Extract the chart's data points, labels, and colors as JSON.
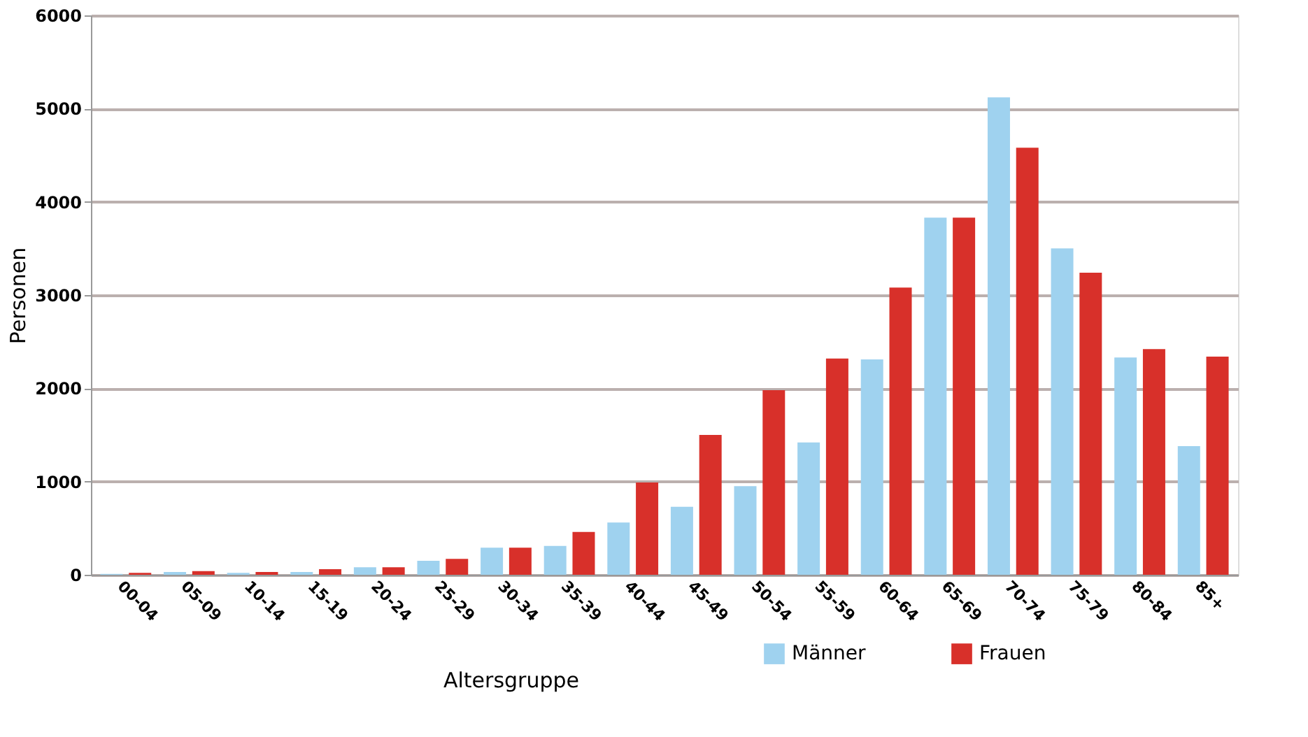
{
  "chart_data": {
    "type": "bar",
    "xlabel": "Altersgruppe",
    "ylabel": "Personen",
    "categories": [
      "00-04",
      "05-09",
      "10-14",
      "15-19",
      "20-24",
      "25-29",
      "30-34",
      "35-39",
      "40-44",
      "45-49",
      "50-54",
      "55-59",
      "60-64",
      "65-69",
      "70-74",
      "75-79",
      "80-84",
      "85+"
    ],
    "series": [
      {
        "name": "Männer",
        "color": "#9fd2ef",
        "values": [
          10,
          30,
          20,
          30,
          80,
          150,
          290,
          310,
          560,
          730,
          950,
          1420,
          2310,
          3830,
          5120,
          3500,
          2330,
          1380
        ]
      },
      {
        "name": "Frauen",
        "color": "#d8302a",
        "values": [
          20,
          40,
          30,
          60,
          80,
          170,
          290,
          460,
          990,
          1500,
          1980,
          2320,
          3080,
          3830,
          4580,
          3240,
          2420,
          2340
        ]
      }
    ],
    "ylim": [
      0,
      6000
    ],
    "yticks": [
      0,
      1000,
      2000,
      3000,
      4000,
      5000,
      6000
    ],
    "grid": "y",
    "legend": "bottom"
  }
}
